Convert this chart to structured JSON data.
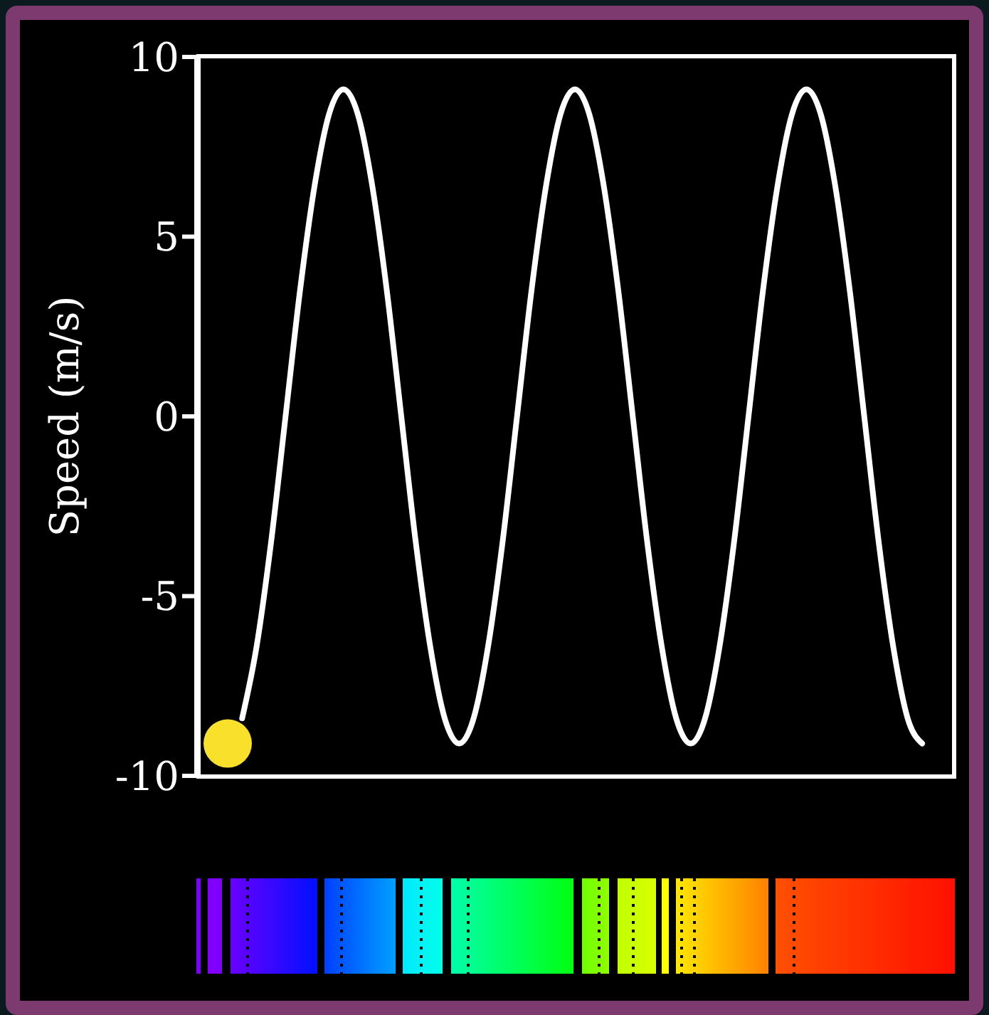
{
  "chart_data": {
    "type": "line",
    "ylabel": "Speed (m/s)",
    "ylim": [
      -10,
      10
    ],
    "yticks": [
      -10,
      -5,
      0,
      5,
      10
    ],
    "grid": false,
    "tick_labels": "y",
    "categories": [
      null,
      null,
      null,
      null,
      null,
      null,
      null,
      null,
      null,
      null,
      null,
      null,
      null,
      null,
      null,
      null,
      null,
      null,
      null,
      null,
      null,
      null,
      null,
      null,
      null,
      null,
      null,
      null,
      null,
      null,
      null,
      null,
      null,
      null,
      null,
      null,
      null,
      null,
      null,
      null,
      null,
      null,
      null,
      null,
      null,
      null,
      null,
      null,
      null
    ],
    "series": [
      {
        "color": "#ffffff",
        "marker": "none",
        "line_style": "solid",
        "values": [
          null,
          -8.4,
          -6.4,
          -3.5,
          0,
          3.5,
          6.4,
          8.4,
          9.1,
          8.4,
          6.4,
          3.5,
          0,
          -3.5,
          -6.4,
          -8.4,
          -9.1,
          -8.4,
          -6.4,
          -3.5,
          0,
          3.5,
          6.4,
          8.4,
          9.1,
          8.4,
          6.4,
          3.5,
          0,
          -3.5,
          -6.4,
          -8.4,
          -9.1,
          -8.4,
          -6.4,
          -3.5,
          0,
          3.5,
          6.4,
          8.4,
          9.1,
          8.4,
          6.4,
          3.5,
          0,
          -3.5,
          -6.4,
          -8.4,
          -9.1
        ]
      },
      {
        "type": "scatter",
        "color": "#f9e02b",
        "marker": "circle",
        "values": [
          -9.1,
          null,
          null,
          null,
          null,
          null,
          null,
          null,
          null,
          null,
          null,
          null,
          null,
          null,
          null,
          null,
          null,
          null,
          null,
          null,
          null,
          null,
          null,
          null,
          null,
          null,
          null,
          null,
          null,
          null,
          null,
          null,
          null,
          null,
          null,
          null,
          null,
          null,
          null,
          null,
          null,
          null,
          null,
          null,
          null,
          null,
          null,
          null,
          null
        ]
      }
    ]
  }
}
